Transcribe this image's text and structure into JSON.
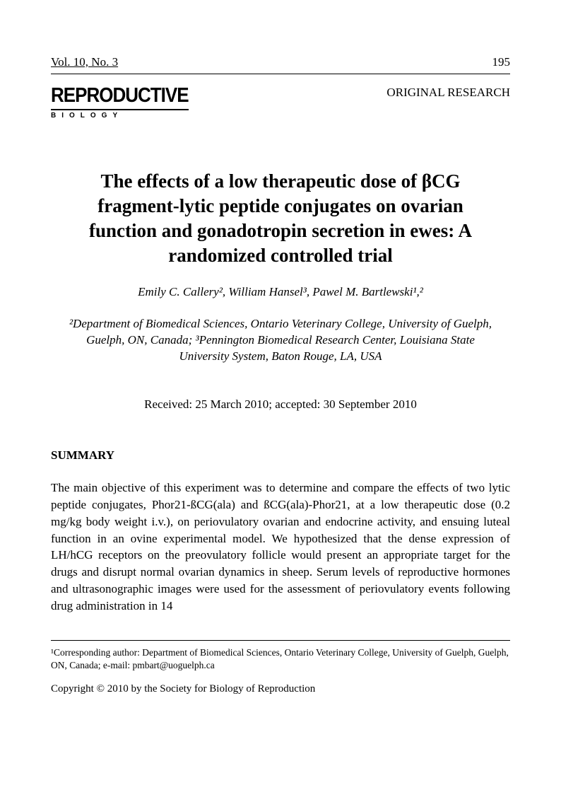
{
  "header": {
    "vol_issue": "Vol. 10, No. 3",
    "page_number": "195"
  },
  "journal": {
    "title": "REPRODUCTIVE",
    "subtitle": "BIOLOGY"
  },
  "article_type": "ORIGINAL RESEARCH",
  "title": "The effects of a low therapeutic dose of βCG fragment-lytic peptide conjugates on ovarian function and gonadotropin secretion in ewes: A randomized controlled trial",
  "authors": "Emily C. Callery², William Hansel³, Pawel M. Bartlewski¹,²",
  "affiliations": "²Department of Biomedical Sciences, Ontario Veterinary College, University of Guelph, Guelph, ON, Canada; ³Pennington Biomedical Research Center, Louisiana State University System, Baton Rouge, LA, USA",
  "dates": "Received: 25 March 2010; accepted: 30 September 2010",
  "summary_heading": "SUMMARY",
  "summary_text": "The main objective of this experiment was to determine and compare the effects of two lytic peptide conjugates, Phor21-ßCG(ala) and ßCG(ala)-Phor21, at a low therapeutic dose (0.2 mg/kg body weight i.v.), on periovulatory ovarian and endocrine activity, and ensuing luteal function in an ovine experimental model. We hypothesized that the dense expression of LH/hCG receptors on the preovulatory follicle would present an appropriate target for the drugs and disrupt normal ovarian dynamics in sheep. Serum levels of reproductive hormones and ultrasonographic images were used for the assessment of periovulatory events following drug administration in 14",
  "footnote": "¹Corresponding author: Department of Biomedical Sciences, Ontario Veterinary College, University of Guelph, Guelph, ON, Canada; e-mail: pmbart@uoguelph.ca",
  "copyright": "Copyright © 2010 by the Society for Biology of Reproduction"
}
